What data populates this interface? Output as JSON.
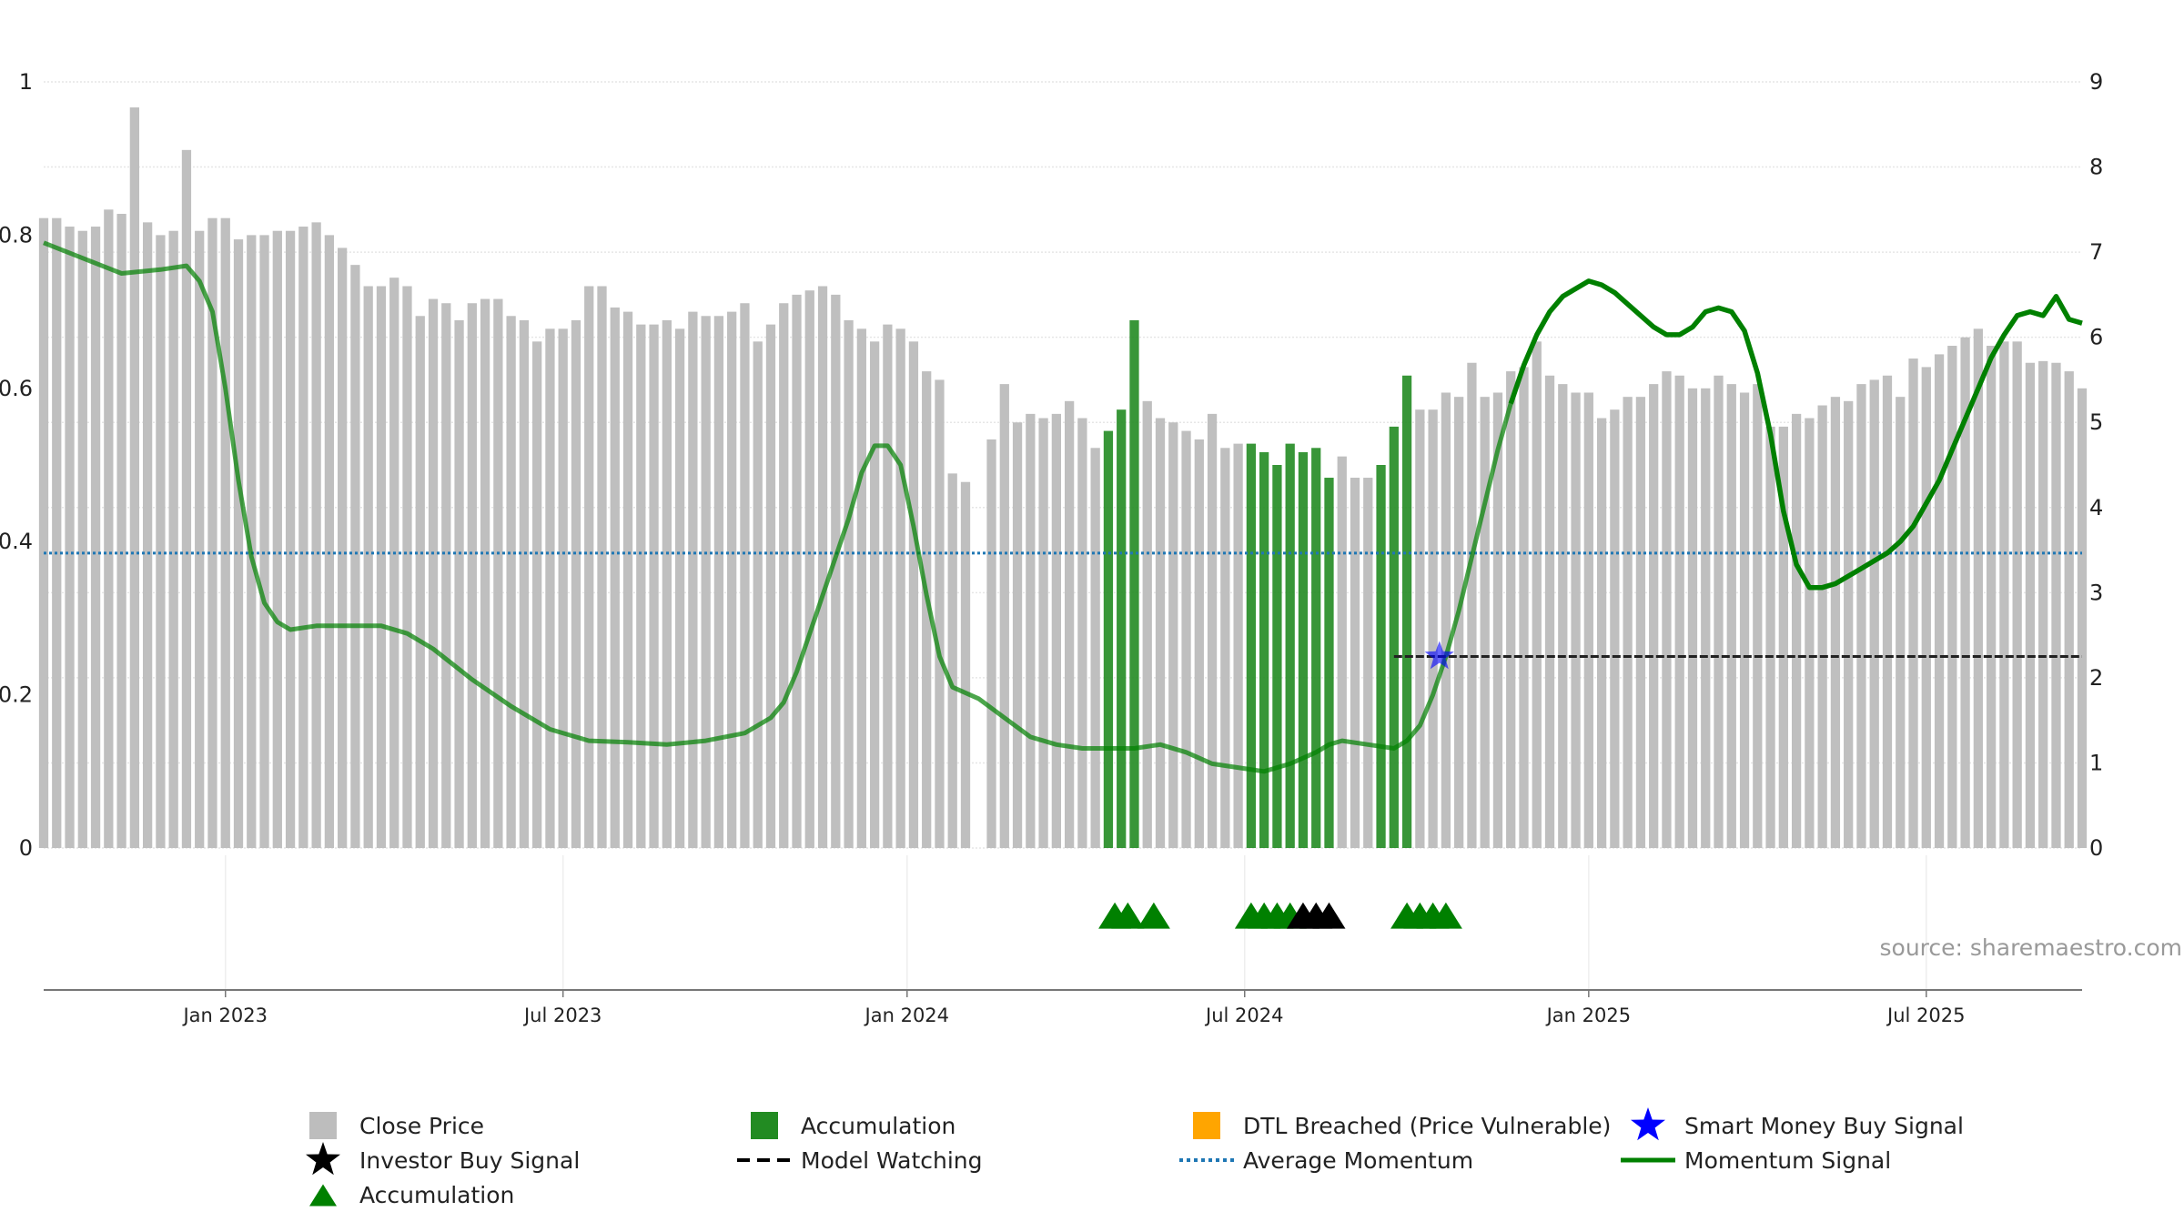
{
  "chart_data": {
    "type": "bar+line",
    "title": "",
    "xlabel": "",
    "ylabel_left": "",
    "ylabel_right": "",
    "source_text": "source: sharemaestro.com",
    "left_axis": {
      "ylim": [
        0,
        1
      ],
      "ticks": [
        0,
        0.2,
        0.4,
        0.6,
        0.8,
        1
      ],
      "tick_labels": [
        "0",
        "0.2",
        "0.4",
        "0.6",
        "0.8",
        "1"
      ]
    },
    "right_axis": {
      "ylim": [
        0,
        9
      ],
      "ticks": [
        0,
        1,
        2,
        3,
        4,
        5,
        6,
        7,
        8,
        9
      ],
      "tick_labels": [
        "0",
        "1",
        "2",
        "3",
        "4",
        "5",
        "6",
        "7",
        "8",
        "9"
      ]
    },
    "x_axis": {
      "start_index": 0,
      "end_index": 157,
      "ticks": [
        {
          "index": 14,
          "label": "Jan 2023"
        },
        {
          "index": 40,
          "label": "Jul 2023"
        },
        {
          "index": 66.5,
          "label": "Jan 2024"
        },
        {
          "index": 92.5,
          "label": "Jul 2024"
        },
        {
          "index": 119,
          "label": "Jan 2025"
        },
        {
          "index": 145,
          "label": "Jul 2025"
        }
      ]
    },
    "close_price": {
      "name": "Close Price",
      "axis": "right",
      "values": [
        7.4,
        7.4,
        7.3,
        7.25,
        7.3,
        7.5,
        7.45,
        8.7,
        7.35,
        7.2,
        7.25,
        8.2,
        7.25,
        7.4,
        7.4,
        7.15,
        7.2,
        7.2,
        7.25,
        7.25,
        7.3,
        7.35,
        7.2,
        7.05,
        6.85,
        6.6,
        6.6,
        6.7,
        6.6,
        6.25,
        6.45,
        6.4,
        6.2,
        6.4,
        6.45,
        6.45,
        6.25,
        6.2,
        5.95,
        6.1,
        6.1,
        6.2,
        6.6,
        6.6,
        6.35,
        6.3,
        6.15,
        6.15,
        6.2,
        6.1,
        6.3,
        6.25,
        6.25,
        6.3,
        6.4,
        5.95,
        6.15,
        6.4,
        6.5,
        6.55,
        6.6,
        6.5,
        6.2,
        6.1,
        5.95,
        6.15,
        6.1,
        5.95,
        5.6,
        5.5,
        4.4,
        4.3,
        null,
        4.8,
        5.45,
        5,
        5.1,
        5.05,
        5.1,
        5.25,
        5.05,
        4.7,
        4.9,
        5.15,
        6.2,
        5.25,
        5.05,
        5,
        4.9,
        4.8,
        5.1,
        4.7,
        4.75,
        4.75,
        4.65,
        4.5,
        4.75,
        4.65,
        4.7,
        4.35,
        4.6,
        4.35,
        4.35,
        4.5,
        4.95,
        5.55,
        5.15,
        5.15,
        5.35,
        5.3,
        5.7,
        5.3,
        5.35,
        5.6,
        5.65,
        5.95,
        5.55,
        5.45,
        5.35,
        5.35,
        5.05,
        5.15,
        5.3,
        5.3,
        5.45,
        5.6,
        5.55,
        5.4,
        5.4,
        5.55,
        5.45,
        5.35,
        5.45,
        4.95,
        4.95,
        5.1,
        5.05,
        5.2,
        5.3,
        5.25,
        5.45,
        5.5,
        5.55,
        5.3,
        5.75,
        5.65,
        5.8,
        5.9,
        6.0,
        6.1,
        5.9,
        5.95,
        5.95,
        5.7,
        5.72,
        5.7,
        5.6,
        5.4
      ]
    },
    "accumulation_bar_indices": [
      82,
      83,
      84,
      93,
      94,
      95,
      96,
      97,
      98,
      99,
      103,
      104,
      105
    ],
    "accumulation_markers": {
      "name": "Accumulation",
      "y": 0.5,
      "indices": [
        82.5,
        83.5,
        85.5,
        93,
        94,
        95,
        96,
        105,
        106,
        107,
        108
      ]
    },
    "investor_buy_markers": {
      "name": "Investor Buy Signal",
      "y": 0.5,
      "indices": [
        97,
        98,
        99
      ]
    },
    "smart_money_signal": {
      "name": "Smart Money Buy Signal",
      "index": 107.5,
      "value": 0.25
    },
    "model_watching": {
      "name": "Model Watching",
      "start_index": 104,
      "end_index": 157,
      "value": 0.25
    },
    "average_momentum": {
      "name": "Average Momentum",
      "value": 0.385
    },
    "momentum_signal": {
      "name": "Momentum Signal",
      "axis": "left",
      "points": [
        [
          0,
          0.79
        ],
        [
          3,
          0.77
        ],
        [
          6,
          0.75
        ],
        [
          9,
          0.755
        ],
        [
          11,
          0.76
        ],
        [
          12,
          0.74
        ],
        [
          13,
          0.7
        ],
        [
          14,
          0.6
        ],
        [
          15,
          0.48
        ],
        [
          16,
          0.38
        ],
        [
          17,
          0.32
        ],
        [
          18,
          0.295
        ],
        [
          19,
          0.285
        ],
        [
          21,
          0.29
        ],
        [
          24,
          0.29
        ],
        [
          26,
          0.29
        ],
        [
          28,
          0.28
        ],
        [
          30,
          0.26
        ],
        [
          33,
          0.22
        ],
        [
          36,
          0.185
        ],
        [
          39,
          0.155
        ],
        [
          42,
          0.14
        ],
        [
          45,
          0.138
        ],
        [
          48,
          0.135
        ],
        [
          51,
          0.14
        ],
        [
          54,
          0.15
        ],
        [
          56,
          0.17
        ],
        [
          57,
          0.19
        ],
        [
          58,
          0.23
        ],
        [
          60,
          0.33
        ],
        [
          62,
          0.43
        ],
        [
          63,
          0.49
        ],
        [
          64,
          0.525
        ],
        [
          65,
          0.525
        ],
        [
          66,
          0.5
        ],
        [
          67,
          0.42
        ],
        [
          68,
          0.33
        ],
        [
          69,
          0.25
        ],
        [
          70,
          0.21
        ],
        [
          72,
          0.195
        ],
        [
          74,
          0.17
        ],
        [
          76,
          0.145
        ],
        [
          78,
          0.135
        ],
        [
          80,
          0.13
        ],
        [
          82,
          0.13
        ],
        [
          84,
          0.13
        ],
        [
          86,
          0.135
        ],
        [
          88,
          0.125
        ],
        [
          90,
          0.11
        ],
        [
          92,
          0.105
        ],
        [
          94,
          0.1
        ],
        [
          96,
          0.11
        ],
        [
          98,
          0.125
        ],
        [
          99,
          0.135
        ],
        [
          100,
          0.14
        ],
        [
          102,
          0.135
        ],
        [
          104,
          0.13
        ],
        [
          105,
          0.14
        ],
        [
          106,
          0.16
        ],
        [
          107,
          0.2
        ],
        [
          108,
          0.25
        ],
        [
          109,
          0.31
        ],
        [
          110,
          0.38
        ],
        [
          111,
          0.45
        ],
        [
          112,
          0.52
        ],
        [
          113,
          0.58
        ],
        [
          114,
          0.63
        ],
        [
          115,
          0.67
        ],
        [
          116,
          0.7
        ],
        [
          117,
          0.72
        ],
        [
          118,
          0.73
        ],
        [
          119,
          0.74
        ],
        [
          120,
          0.735
        ],
        [
          121,
          0.725
        ],
        [
          122,
          0.71
        ],
        [
          123,
          0.695
        ],
        [
          124,
          0.68
        ],
        [
          125,
          0.67
        ],
        [
          126,
          0.67
        ],
        [
          127,
          0.68
        ],
        [
          128,
          0.7
        ],
        [
          129,
          0.705
        ],
        [
          130,
          0.7
        ],
        [
          131,
          0.675
        ],
        [
          132,
          0.62
        ],
        [
          133,
          0.54
        ],
        [
          134,
          0.44
        ],
        [
          135,
          0.37
        ],
        [
          136,
          0.34
        ],
        [
          137,
          0.34
        ],
        [
          138,
          0.345
        ],
        [
          139,
          0.355
        ],
        [
          140,
          0.365
        ],
        [
          141,
          0.375
        ],
        [
          142,
          0.385
        ],
        [
          143,
          0.4
        ],
        [
          144,
          0.42
        ],
        [
          145,
          0.45
        ],
        [
          146,
          0.48
        ],
        [
          147,
          0.52
        ],
        [
          148,
          0.56
        ],
        [
          149,
          0.6
        ],
        [
          150,
          0.64
        ],
        [
          151,
          0.67
        ],
        [
          152,
          0.695
        ],
        [
          153,
          0.7
        ],
        [
          154,
          0.695
        ],
        [
          155,
          0.72
        ],
        [
          156,
          0.69
        ],
        [
          157,
          0.685
        ]
      ],
      "faded_until_index": 113
    },
    "legend": [
      {
        "key": "close",
        "label": "Close Price",
        "symbol": "square",
        "color": "#bdbdbd"
      },
      {
        "key": "accum_bar",
        "label": "Accumulation",
        "symbol": "square",
        "color": "#228B22"
      },
      {
        "key": "dtl",
        "label": "DTL Breached (Price Vulnerable)",
        "symbol": "square",
        "color": "#FFA500"
      },
      {
        "key": "smart",
        "label": "Smart Money Buy Signal",
        "symbol": "star",
        "color": "#0000FF"
      },
      {
        "key": "investor",
        "label": "Investor Buy Signal",
        "symbol": "star",
        "color": "#000000"
      },
      {
        "key": "watching",
        "label": "Model Watching",
        "symbol": "dash",
        "color": "#000000"
      },
      {
        "key": "avg",
        "label": "Average Momentum",
        "symbol": "dotted",
        "color": "#1f77b4"
      },
      {
        "key": "mom",
        "label": "Momentum Signal",
        "symbol": "line",
        "color": "#008000"
      },
      {
        "key": "accum_tri",
        "label": "Accumulation",
        "symbol": "triangle",
        "color": "#008000"
      }
    ],
    "colors": {
      "close": "#bfbfbf",
      "accumulation": "#228B22",
      "momentum": "#008000",
      "average": "#1f77b4",
      "smart": "#0000FF",
      "investor": "#000000",
      "grid": "#e6e6e6"
    }
  }
}
